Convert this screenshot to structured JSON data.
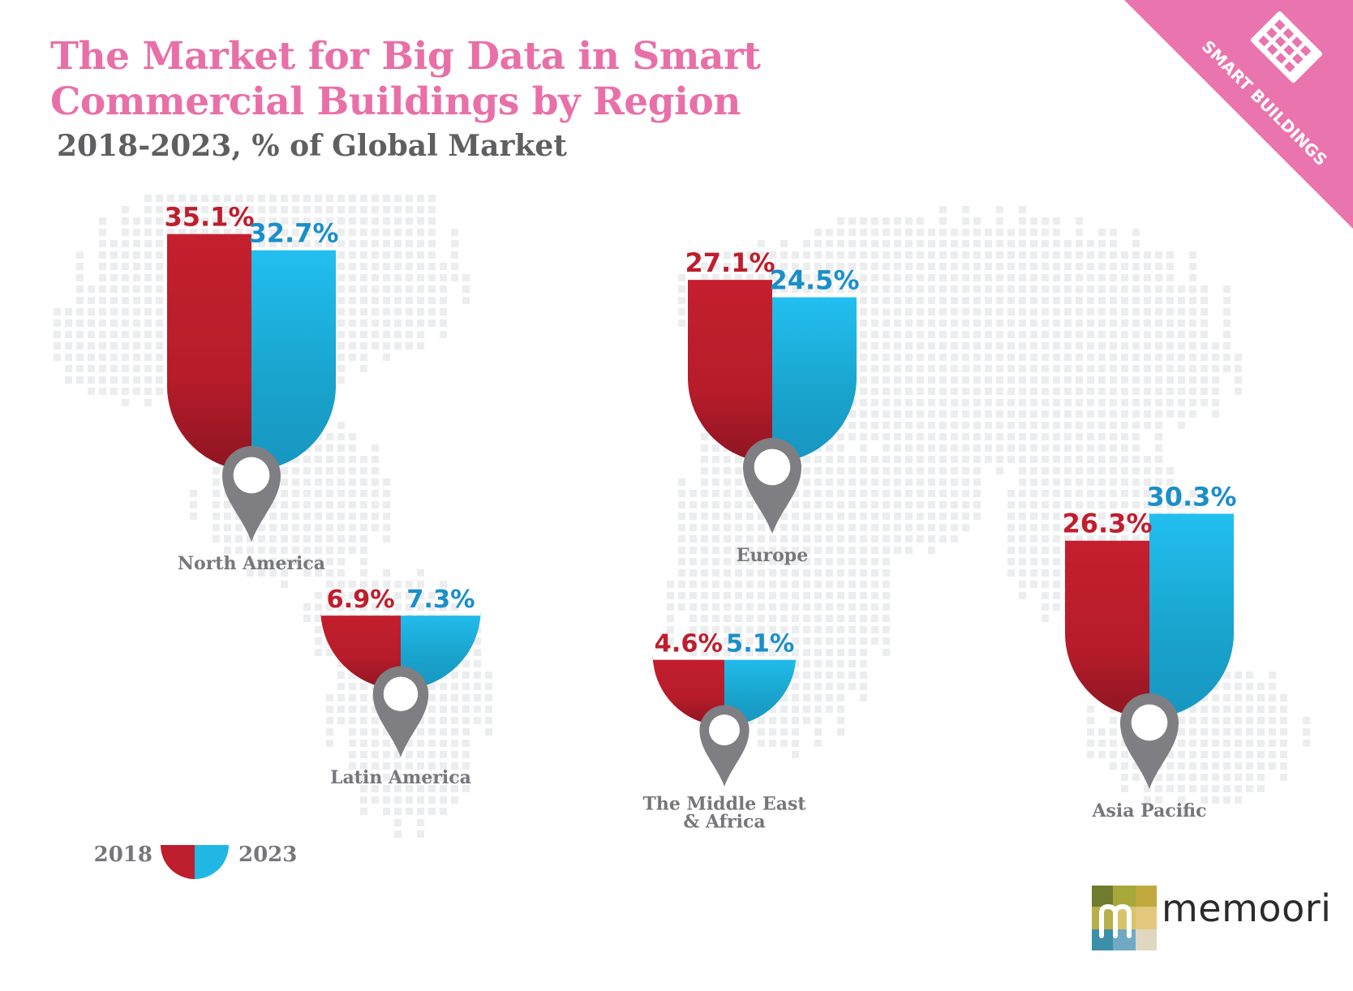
{
  "title": {
    "line1": "The Market for Big Data in Smart",
    "line2": "Commercial Buildings by Region"
  },
  "subtitle": "2018-2023, % of Global Market",
  "banner": {
    "text": "SMART BUILDINGS"
  },
  "logo": {
    "text": "memoori"
  },
  "legend": {
    "left_label": "2018",
    "right_label": "2023"
  },
  "colors": {
    "y2018": "#be1e2d",
    "y2023": "#1fb8e4",
    "pin": "#7f7e82",
    "accent": "#e96fa8",
    "label_2018": "#be1e2d",
    "label_2023": "#1a8fc8"
  },
  "chart_data": {
    "type": "bar",
    "title": "The Market for Big Data in Smart Commercial Buildings by Region",
    "subtitle": "2018-2023, % of Global Market",
    "unit": "%",
    "series_names": [
      "2018",
      "2023"
    ],
    "regions": [
      {
        "name": "North America",
        "lines": [
          "North America"
        ],
        "v2018": 35.1,
        "v2023": 32.7,
        "label2018": "35.1%",
        "label2023": "32.7%"
      },
      {
        "name": "Europe",
        "lines": [
          "Europe"
        ],
        "v2018": 27.1,
        "v2023": 24.5,
        "label2018": "27.1%",
        "label2023": "24.5%"
      },
      {
        "name": "Latin America",
        "lines": [
          "Latin America"
        ],
        "v2018": 6.9,
        "v2023": 7.3,
        "label2018": "6.9%",
        "label2023": "7.3%"
      },
      {
        "name": "The Middle East & Africa",
        "lines": [
          "The Middle East",
          "& Africa"
        ],
        "v2018": 4.6,
        "v2023": 5.1,
        "label2018": "4.6%",
        "label2023": "5.1%"
      },
      {
        "name": "Asia Pacific",
        "lines": [
          "Asia Pacific"
        ],
        "v2018": 26.3,
        "v2023": 30.3,
        "label2018": "26.3%",
        "label2023": "30.3%"
      }
    ]
  }
}
